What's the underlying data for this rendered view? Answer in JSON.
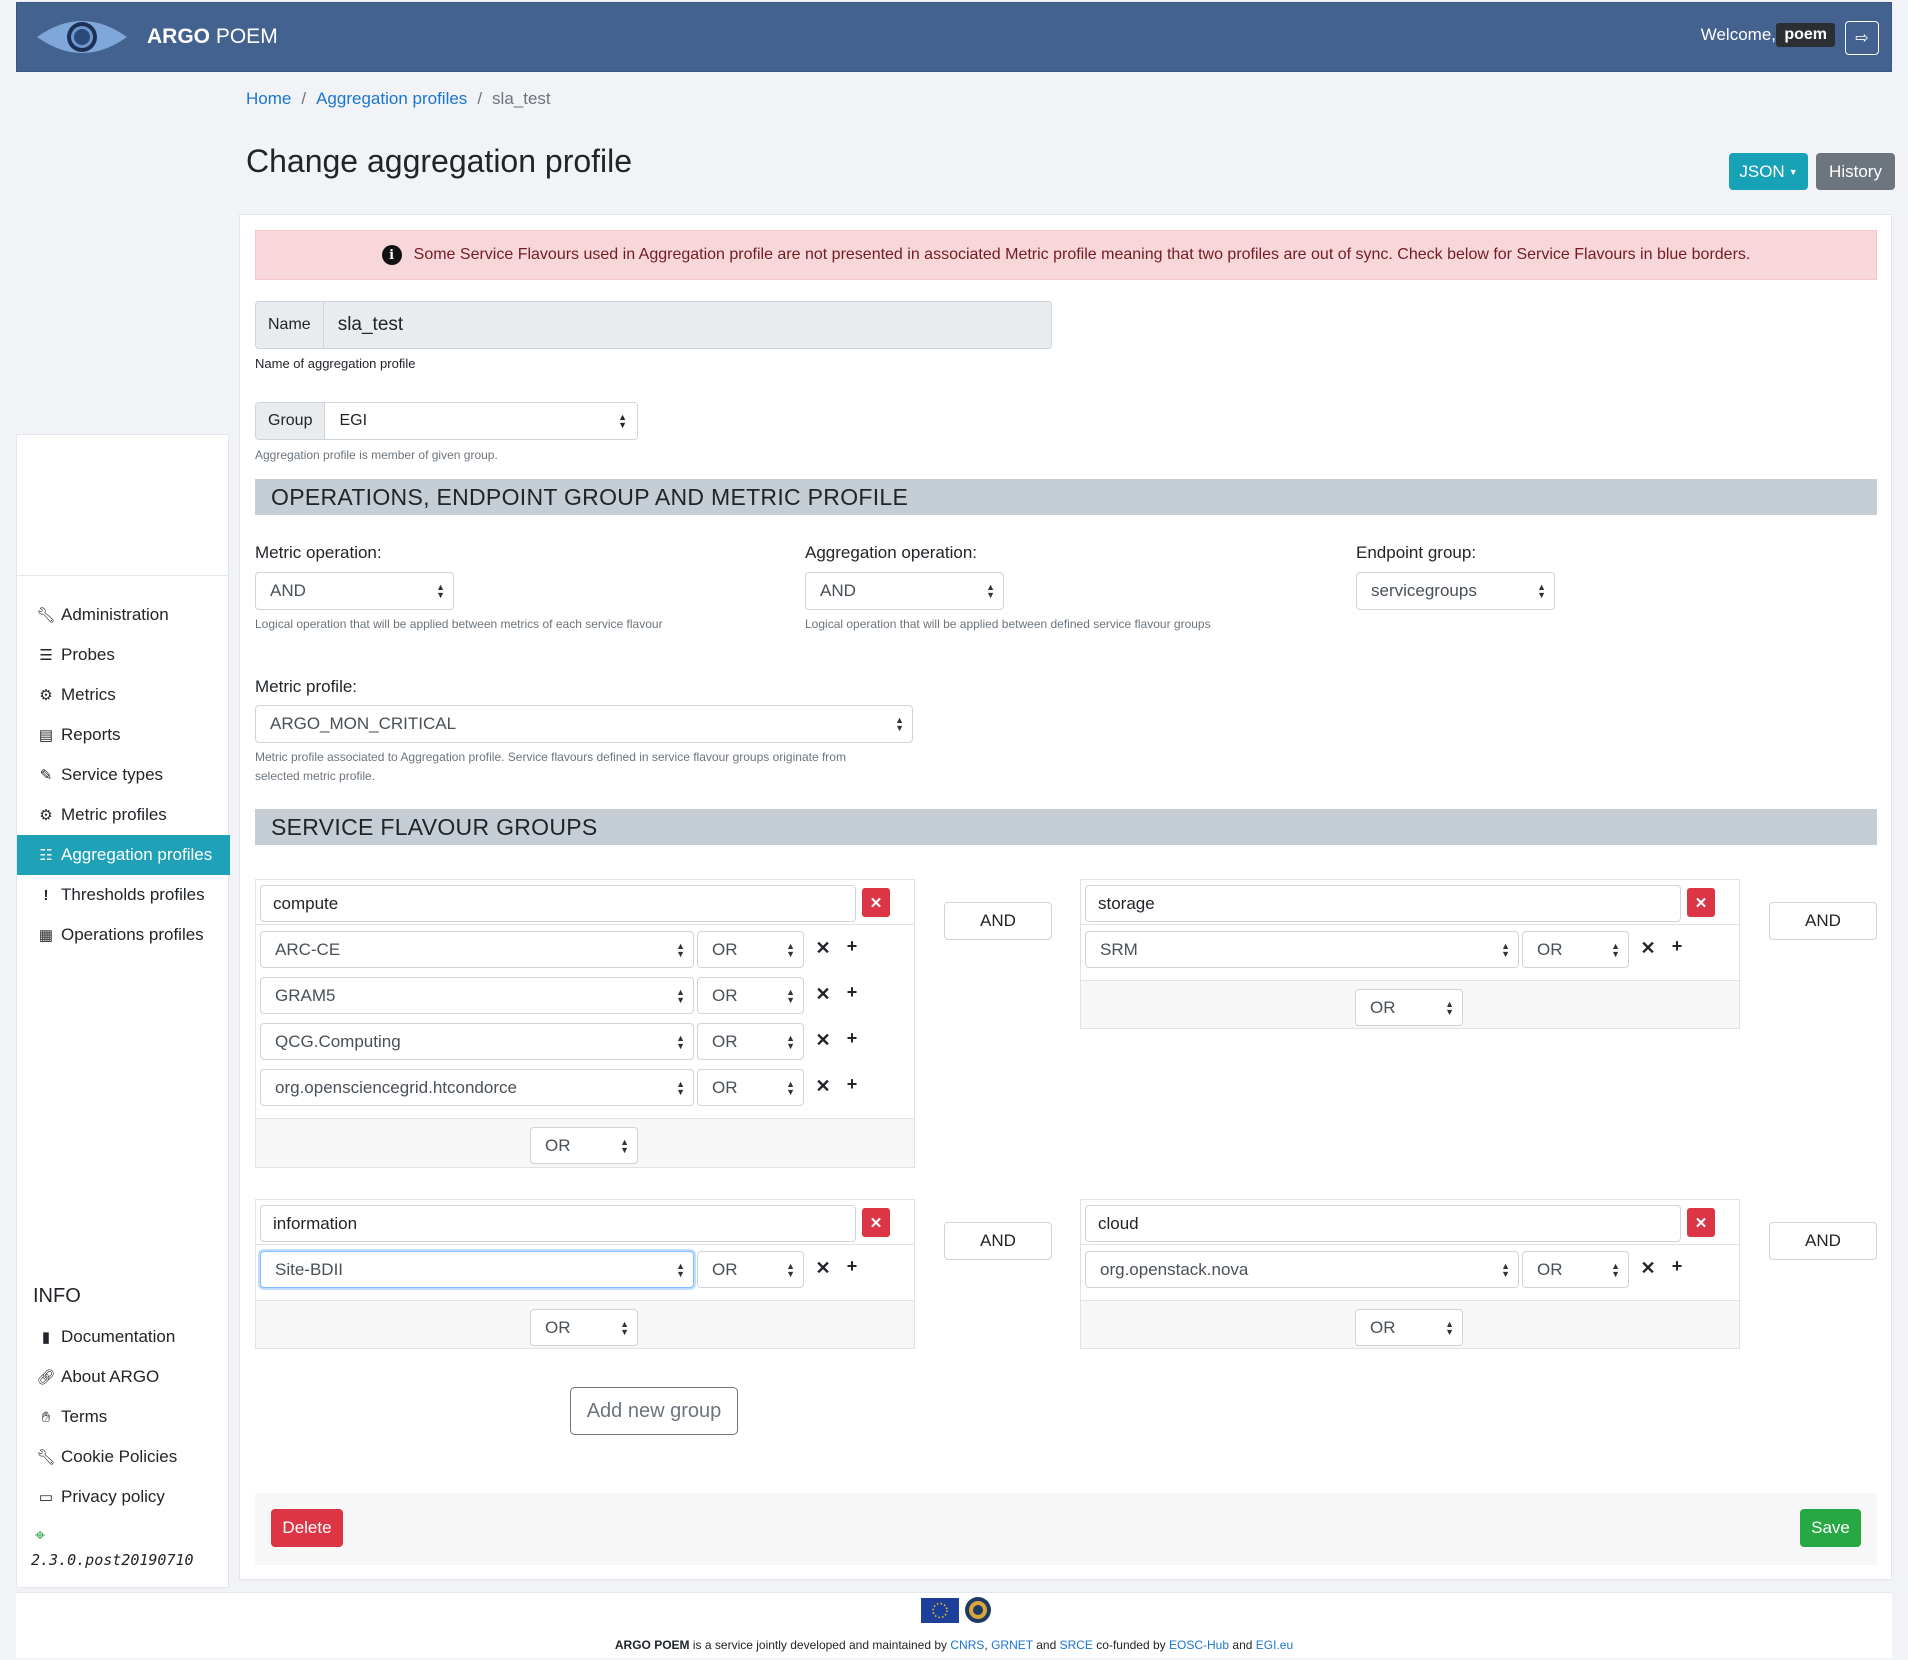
{
  "header": {
    "brand_bold": "ARGO",
    "brand_rest": "POEM",
    "welcome": "Welcome,",
    "user": "poem"
  },
  "breadcrumb": {
    "home": "Home",
    "section": "Aggregation profiles",
    "current": "sla_test"
  },
  "page": {
    "title": "Change aggregation profile",
    "json_btn": "JSON",
    "history_btn": "History"
  },
  "sidebar": {
    "items": [
      {
        "label": "Administration",
        "icon": "wrench-icon"
      },
      {
        "label": "Probes",
        "icon": "server-icon"
      },
      {
        "label": "Metrics",
        "icon": "cog-icon"
      },
      {
        "label": "Reports",
        "icon": "file-icon"
      },
      {
        "label": "Service types",
        "icon": "pen-icon"
      },
      {
        "label": "Metric profiles",
        "icon": "cogs-icon"
      },
      {
        "label": "Aggregation profiles",
        "icon": "tasks-icon"
      },
      {
        "label": "Thresholds profiles",
        "icon": "exclamation-icon"
      },
      {
        "label": "Operations profiles",
        "icon": "table-icon"
      }
    ],
    "info_heading": "INFO",
    "info_items": [
      {
        "label": "Documentation",
        "icon": "book-icon"
      },
      {
        "label": "About ARGO",
        "icon": "link-icon"
      },
      {
        "label": "Terms",
        "icon": "handshake-icon"
      },
      {
        "label": "Cookie Policies",
        "icon": "wrench-icon"
      },
      {
        "label": "Privacy policy",
        "icon": "id-card-icon"
      }
    ],
    "version": "2.3.0.post20190710"
  },
  "alert": {
    "text": "Some Service Flavours used in Aggregation profile are not presented in associated Metric profile meaning that two profiles are out of sync. Check below for Service Flavours in blue borders."
  },
  "form": {
    "name_label": "Name",
    "name_value": "sla_test",
    "name_help": "Name of aggregation profile",
    "group_label": "Group",
    "group_value": "EGI",
    "group_help": "Aggregation profile is member of given group.",
    "section1": "OPERATIONS, ENDPOINT GROUP AND METRIC PROFILE",
    "metric_op_label": "Metric operation:",
    "metric_op_value": "AND",
    "metric_op_help": "Logical operation that will be applied between metrics of each service flavour",
    "agg_op_label": "Aggregation operation:",
    "agg_op_value": "AND",
    "agg_op_help": "Logical operation that will be applied between defined service flavour groups",
    "endpoint_label": "Endpoint group:",
    "endpoint_value": "servicegroups",
    "metric_profile_label": "Metric profile:",
    "metric_profile_value": "ARGO_MON_CRITICAL",
    "metric_profile_help_1": "Metric profile associated to Aggregation profile. Service flavours defined in service flavour groups originate from",
    "metric_profile_help_2": "selected metric profile.",
    "section2": "SERVICE FLAVOUR GROUPS"
  },
  "groups": {
    "compute": {
      "name": "compute",
      "op": "OR",
      "and": "AND",
      "services": [
        {
          "name": "ARC-CE",
          "op": "OR"
        },
        {
          "name": "GRAM5",
          "op": "OR"
        },
        {
          "name": "QCG.Computing",
          "op": "OR"
        },
        {
          "name": "org.opensciencegrid.htcondorce",
          "op": "OR"
        }
      ]
    },
    "storage": {
      "name": "storage",
      "op": "OR",
      "and": "AND",
      "services": [
        {
          "name": "SRM",
          "op": "OR"
        }
      ]
    },
    "information": {
      "name": "information",
      "op": "OR",
      "and": "AND",
      "services": [
        {
          "name": "Site-BDII",
          "op": "OR"
        }
      ]
    },
    "cloud": {
      "name": "cloud",
      "op": "OR",
      "and": "AND",
      "services": [
        {
          "name": "org.openstack.nova",
          "op": "OR"
        }
      ]
    }
  },
  "actions": {
    "add_group": "Add new group",
    "delete": "Delete",
    "save": "Save"
  },
  "footer": {
    "brand": "ARGO POEM",
    "t1": "is a service jointly developed and maintained by",
    "cnrs": "CNRS",
    "grnet": "GRNET",
    "and1": "and",
    "srce": "SRCE",
    "t2": "co-funded by",
    "eosc": "EOSC-Hub",
    "and2": "and",
    "egi": "EGI.eu"
  }
}
